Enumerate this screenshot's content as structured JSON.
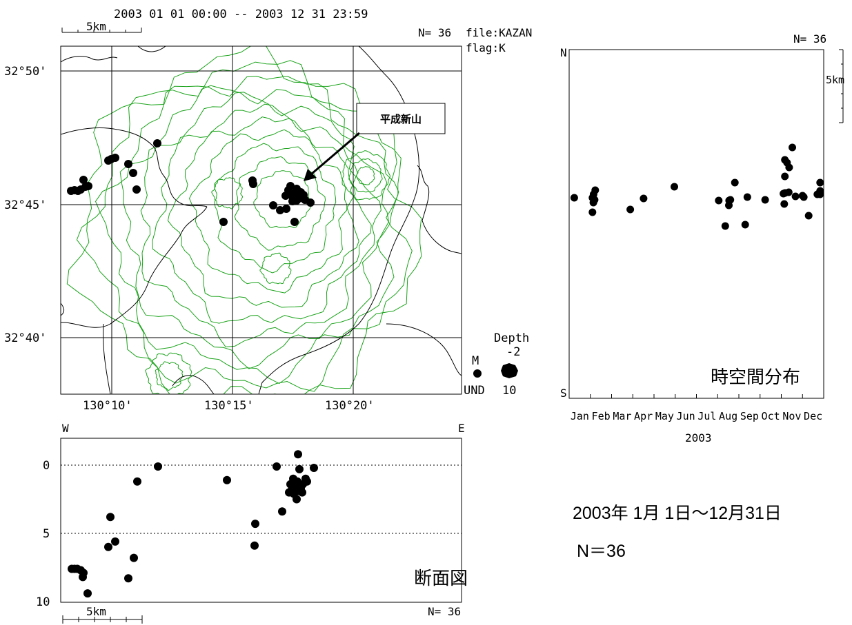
{
  "map": {
    "period": "2003 01 01 00:00 -- 2003 12 31 23:59",
    "scale_label": "5km",
    "count": "N= 36",
    "file": "file:KAZAN",
    "flag": "flag:K",
    "annotation": "平成新山",
    "lat_labels": [
      "32°50'",
      "32°45'",
      "32°40'"
    ],
    "lon_labels": [
      "130°10'",
      "130°15'",
      "130°20'"
    ],
    "legend": {
      "m_label": "M",
      "und_label": "UND",
      "depth_title": "Depth",
      "depth_min": "-2",
      "depth_max": "10"
    },
    "epicenters": [
      [
        103,
        277
      ],
      [
        108,
        276
      ],
      [
        113,
        277
      ],
      [
        117,
        275
      ],
      [
        121,
        261
      ],
      [
        124,
        271
      ],
      [
        128,
        270
      ],
      [
        157,
        233
      ],
      [
        161,
        231
      ],
      [
        167,
        229
      ],
      [
        186,
        238
      ],
      [
        193,
        251
      ],
      [
        198,
        275
      ],
      [
        228,
        208
      ],
      [
        324,
        322
      ],
      [
        366,
        262
      ],
      [
        367,
        267
      ],
      [
        396,
        298
      ],
      [
        406,
        305
      ],
      [
        415,
        303
      ],
      [
        427,
        322
      ],
      [
        414,
        284
      ],
      [
        418,
        276
      ],
      [
        421,
        270
      ],
      [
        424,
        285
      ],
      [
        427,
        281
      ],
      [
        430,
        274
      ],
      [
        433,
        288
      ],
      [
        436,
        279
      ],
      [
        440,
        283
      ],
      [
        442,
        290
      ],
      [
        450,
        294
      ],
      [
        424,
        292
      ],
      [
        430,
        291
      ],
      [
        419,
        279
      ],
      [
        431,
        280
      ]
    ]
  },
  "section": {
    "west_label": "W",
    "east_label": "E",
    "title": "断面図",
    "depth_ticks": [
      "0",
      "5",
      "10"
    ],
    "count": "N= 36",
    "scale_label": "5km",
    "points": [
      [
        104,
        7.6
      ],
      [
        108,
        7.6
      ],
      [
        112,
        7.6
      ],
      [
        117,
        7.7
      ],
      [
        120,
        8.2
      ],
      [
        121,
        7.9
      ],
      [
        127,
        9.4
      ],
      [
        160,
        3.8
      ],
      [
        157,
        6.0
      ],
      [
        167,
        5.6
      ],
      [
        186,
        8.3
      ],
      [
        194,
        6.8
      ],
      [
        199,
        1.2
      ],
      [
        229,
        0.1
      ],
      [
        329,
        1.1
      ],
      [
        370,
        4.3
      ],
      [
        369,
        5.9
      ],
      [
        401,
        0.1
      ],
      [
        409,
        3.4
      ],
      [
        419,
        2.0
      ],
      [
        423,
        1.8
      ],
      [
        426,
        2.1
      ],
      [
        428,
        1.5
      ],
      [
        430,
        2.5
      ],
      [
        431,
        1.2
      ],
      [
        434,
        0.3
      ],
      [
        432,
        -0.8
      ],
      [
        434,
        1.9
      ],
      [
        436,
        1.7
      ],
      [
        439,
        1.4
      ],
      [
        443,
        1.0
      ],
      [
        445,
        1.2
      ],
      [
        455,
        0.2
      ],
      [
        421,
        1.4
      ],
      [
        425,
        1.0
      ],
      [
        438,
        2.0
      ]
    ]
  },
  "timespace": {
    "count": "N= 36",
    "north_label": "N",
    "south_label": "S",
    "scale_label": "5km",
    "title": "時空間分布",
    "year_label": "2003",
    "months": [
      "Jan",
      "Feb",
      "Mar",
      "Apr",
      "May",
      "Jun",
      "Jul",
      "Aug",
      "Sep",
      "Oct",
      "Nov",
      "Dec"
    ],
    "events": [
      [
        0.24,
        287
      ],
      [
        1.23,
        276
      ],
      [
        1.15,
        282
      ],
      [
        1.1,
        287
      ],
      [
        1.14,
        294
      ],
      [
        1.1,
        308
      ],
      [
        2.88,
        304
      ],
      [
        3.51,
        288
      ],
      [
        4.96,
        271
      ],
      [
        7.05,
        291
      ],
      [
        7.54,
        291
      ],
      [
        7.53,
        298
      ],
      [
        7.81,
        265
      ],
      [
        7.36,
        328
      ],
      [
        8.4,
        286
      ],
      [
        8.3,
        326
      ],
      [
        9.24,
        290
      ],
      [
        10.27,
        236
      ],
      [
        10.17,
        232
      ],
      [
        10.17,
        256
      ],
      [
        10.18,
        280
      ],
      [
        10.37,
        243
      ],
      [
        10.52,
        214
      ],
      [
        10.14,
        296
      ],
      [
        10.67,
        285
      ],
      [
        11.06,
        286
      ],
      [
        11.29,
        313
      ],
      [
        11.83,
        265
      ],
      [
        11.83,
        277
      ],
      [
        11.83,
        282
      ],
      [
        11.0,
        284
      ],
      [
        10.35,
        279
      ],
      [
        10.1,
        281
      ],
      [
        7.6,
        290
      ],
      [
        1.2,
        290
      ],
      [
        11.7,
        282
      ]
    ]
  },
  "summary": {
    "period_text": "2003年 1月 1日～12月31日",
    "count_text": "N＝36"
  },
  "colors": {
    "contour": "#1aa31a",
    "coast": "#000000",
    "grid": "#000000",
    "event": "#000000"
  }
}
